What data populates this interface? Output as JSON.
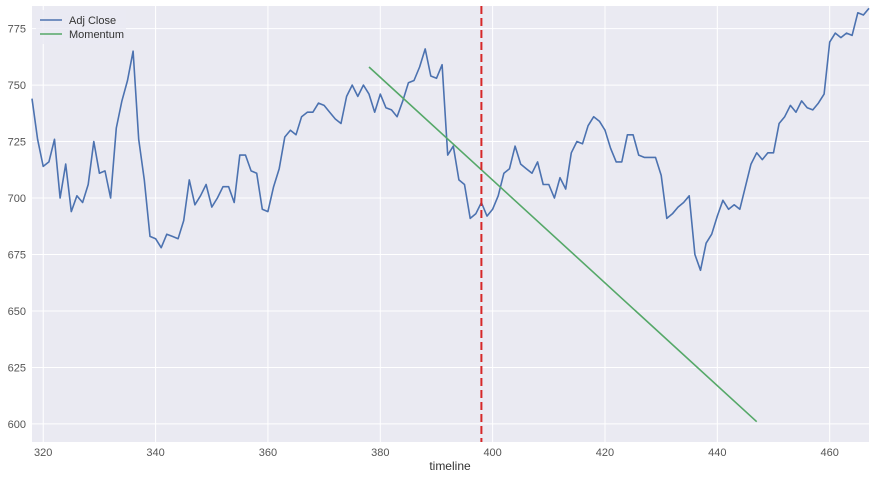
{
  "chart_data": {
    "type": "line",
    "title": "",
    "xlabel": "timeline",
    "ylabel": "",
    "xlim": [
      318,
      467
    ],
    "ylim": [
      592,
      785
    ],
    "grid": true,
    "legend_position": "top-left",
    "x_ticks": [
      320,
      340,
      360,
      380,
      400,
      420,
      440,
      460
    ],
    "y_ticks": [
      600,
      625,
      650,
      675,
      700,
      725,
      750,
      775
    ],
    "x_tick_labels": [
      "320",
      "340",
      "360",
      "380",
      "400",
      "420",
      "440",
      "460"
    ],
    "y_tick_labels": [
      "600",
      "625",
      "650",
      "675",
      "700",
      "725",
      "750",
      "775"
    ],
    "series": [
      {
        "name": "Adj Close",
        "color": "#4c72b0",
        "x": [
          318,
          319,
          320,
          321,
          322,
          323,
          324,
          325,
          326,
          327,
          328,
          329,
          330,
          331,
          332,
          333,
          334,
          335,
          336,
          337,
          338,
          339,
          340,
          341,
          342,
          343,
          344,
          345,
          346,
          347,
          348,
          349,
          350,
          351,
          352,
          353,
          354,
          355,
          356,
          357,
          358,
          359,
          360,
          361,
          362,
          363,
          364,
          365,
          366,
          367,
          368,
          369,
          370,
          371,
          372,
          373,
          374,
          375,
          376,
          377,
          378,
          379,
          380,
          381,
          382,
          383,
          384,
          385,
          386,
          387,
          388,
          389,
          390,
          391,
          392,
          393,
          394,
          395,
          396,
          397,
          398,
          399,
          400,
          401,
          402,
          403,
          404,
          405,
          406,
          407,
          408,
          409,
          410,
          411,
          412,
          413,
          414,
          415,
          416,
          417,
          418,
          419,
          420,
          421,
          422,
          423,
          424,
          425,
          426,
          427,
          428,
          429,
          430,
          431,
          432,
          433,
          434,
          435,
          436,
          437,
          438,
          439,
          440,
          441,
          442,
          443,
          444,
          445,
          446,
          447,
          448,
          449,
          450,
          451,
          452,
          453,
          454,
          455,
          456,
          457,
          458,
          459,
          460,
          461,
          462,
          463,
          464,
          465,
          466,
          467
        ],
        "values": [
          744,
          726,
          714,
          716,
          726,
          700,
          715,
          694,
          701,
          698,
          706,
          725,
          711,
          712,
          700,
          731,
          743,
          752,
          765,
          726,
          708,
          683,
          682,
          678,
          684,
          683,
          682,
          690,
          708,
          697,
          701,
          706,
          696,
          700,
          705,
          705,
          698,
          719,
          719,
          712,
          711,
          695,
          694,
          705,
          713,
          727,
          730,
          728,
          736,
          738,
          738,
          742,
          741,
          738,
          735,
          733,
          745,
          750,
          745,
          750,
          746,
          738,
          746,
          740,
          739,
          736,
          743,
          751,
          752,
          758,
          766,
          754,
          753,
          759,
          719,
          723,
          708,
          706,
          691,
          693,
          698,
          692,
          695,
          701,
          711,
          713,
          723,
          715,
          713,
          711,
          716,
          706,
          706,
          700,
          709,
          704,
          720,
          725,
          724,
          732,
          736,
          734,
          730,
          722,
          716,
          716,
          728,
          728,
          719,
          718,
          718,
          718,
          710,
          691,
          693,
          696,
          698,
          701,
          675,
          668,
          680,
          684,
          692,
          699,
          695,
          697,
          695,
          705,
          715,
          720,
          717,
          720,
          720,
          733,
          736,
          741,
          738,
          743,
          740,
          739,
          742,
          746,
          769,
          773,
          771,
          773,
          772,
          782,
          781,
          784
        ]
      },
      {
        "name": "Momentum",
        "color": "#55a868",
        "x": [
          378,
          447
        ],
        "values": [
          758,
          601
        ]
      }
    ],
    "annotations": [
      {
        "type": "vline",
        "x": 398,
        "color": "#d62728",
        "style": "dashed"
      }
    ]
  }
}
